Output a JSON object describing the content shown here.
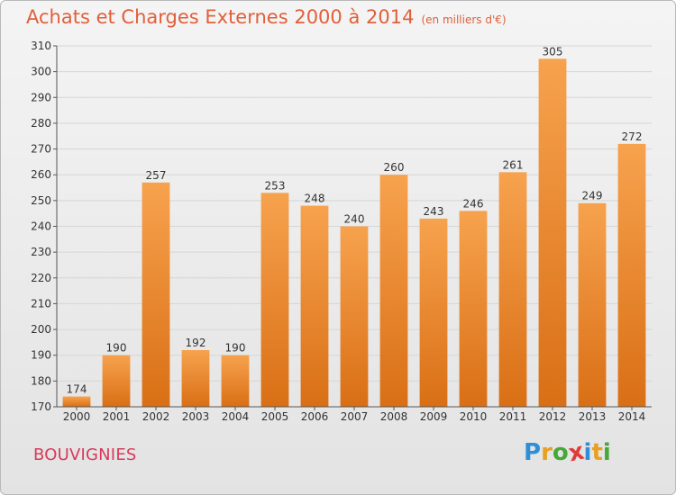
{
  "header": {
    "title": "Achats et Charges Externes 2000 à 2014",
    "subtitle": "(en milliers d'€)"
  },
  "footer": {
    "commune": "BOUVIGNIES",
    "logo_letters": [
      "P",
      "r",
      "o",
      "x",
      "i",
      "t",
      "i"
    ],
    "logo_colors": [
      "#2e8fd8",
      "#e8a020",
      "#46a83a",
      "#e03a3a",
      "#2e8fd8",
      "#e8a020",
      "#46a83a"
    ]
  },
  "colors": {
    "bar_top": "#f7a24e",
    "bar_bottom": "#d96f15",
    "axis": "#555555",
    "grid": "#d6d6d6",
    "text": "#333333"
  },
  "chart_data": {
    "type": "bar",
    "categories": [
      "2000",
      "2001",
      "2002",
      "2003",
      "2004",
      "2005",
      "2006",
      "2007",
      "2008",
      "2009",
      "2010",
      "2011",
      "2012",
      "2013",
      "2014"
    ],
    "values": [
      174,
      190,
      257,
      192,
      190,
      253,
      248,
      240,
      260,
      243,
      246,
      261,
      305,
      249,
      272
    ],
    "ylim": [
      170,
      310
    ],
    "yticks": [
      170,
      180,
      190,
      200,
      210,
      220,
      230,
      240,
      250,
      260,
      270,
      280,
      290,
      300,
      310
    ],
    "grid": true
  }
}
